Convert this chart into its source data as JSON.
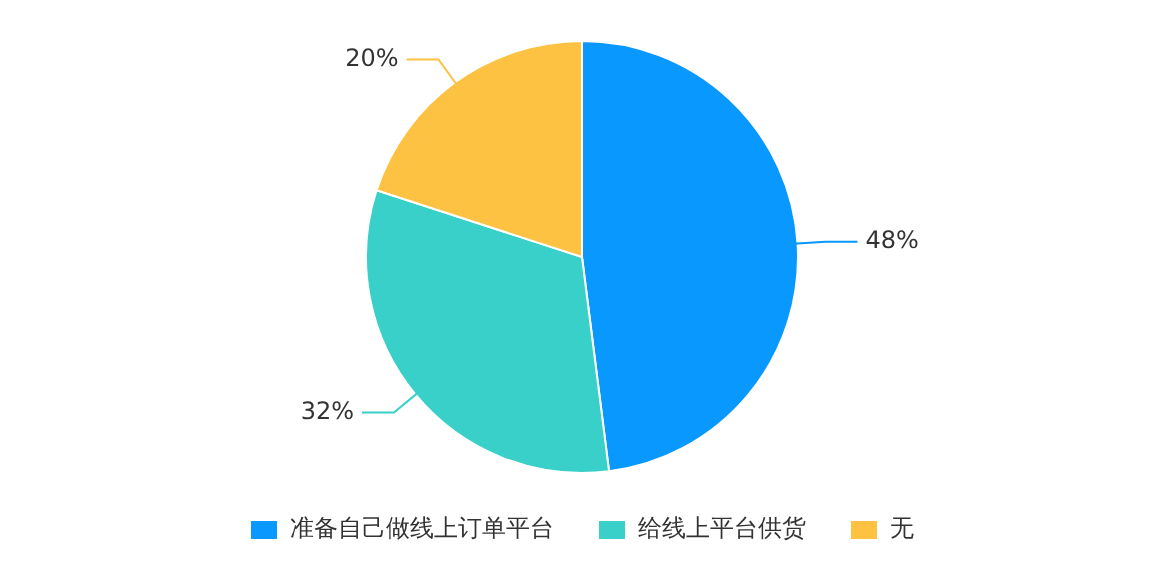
{
  "chart_data": {
    "type": "pie",
    "categories": [
      "准备自己做线上订单平台",
      "给线上平台供货",
      "无"
    ],
    "values": [
      48,
      32,
      20
    ],
    "colors": [
      "#0898fe",
      "#38d0c8",
      "#fdc242"
    ],
    "value_labels": [
      "48%",
      "32%",
      "20%"
    ],
    "legend": "bottom"
  }
}
